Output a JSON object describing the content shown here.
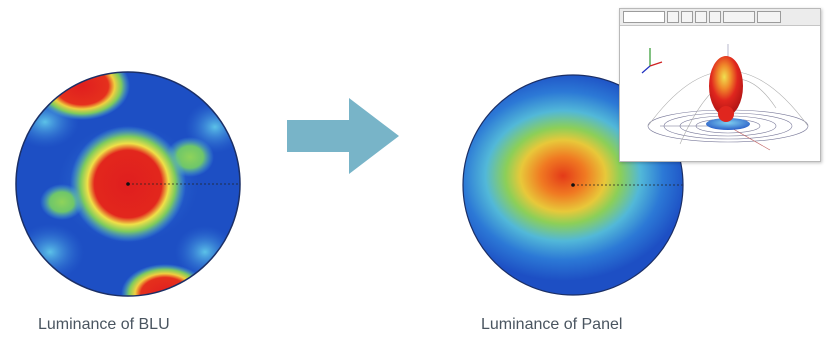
{
  "left_plot": {
    "caption": "Luminance of BLU"
  },
  "right_plot": {
    "caption": "Luminance of Panel"
  },
  "colors": {
    "arrow": "#78b4c8",
    "caption": "#4a5560",
    "plot_blue": "#1d4fc4",
    "plot_cyan": "#4fb1e6",
    "plot_green": "#7ecb5c",
    "plot_yellow": "#e8e84a",
    "plot_orange": "#f08a2a",
    "plot_red": "#e01e1e"
  },
  "icons": {
    "transition": "right-arrow-icon",
    "window": "3d-radiation-pattern-window"
  }
}
